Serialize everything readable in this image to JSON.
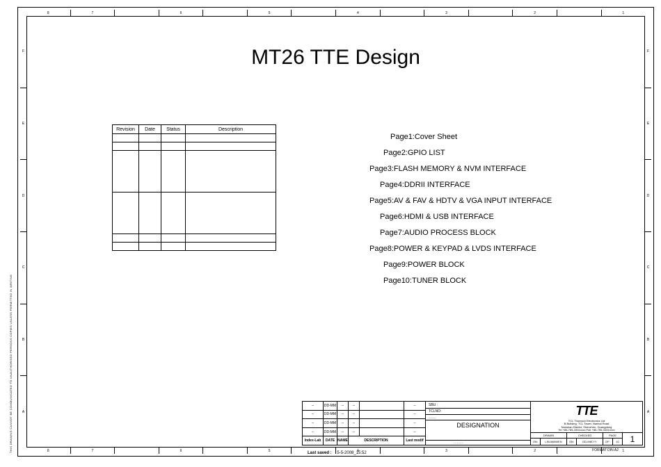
{
  "title": "MT26 TTE Design",
  "ruler_h": [
    "8",
    "7",
    "",
    "6",
    "",
    "5",
    "",
    "4",
    "",
    "3",
    "",
    "2",
    "",
    "1"
  ],
  "ruler_v_left": [
    "F",
    "E",
    "D",
    "C",
    "B",
    "A"
  ],
  "ruler_v_right": [
    "F",
    "E",
    "D",
    "C",
    "B",
    "A"
  ],
  "rev_headers": {
    "rev": "Revision",
    "date": "Date",
    "status": "Status",
    "desc": "Description"
  },
  "pages": {
    "p1": "Page1:Cover Sheet",
    "p2": "Page2:GPIO LIST",
    "p3": "Page3:FLASH MEMORY & NVM INTERFACE",
    "p4": "Page4:DDRII INTERFACE",
    "p5": "Page5:AV & FAV & HDTV & VGA INPUT INTERFACE",
    "p6": "Page6:HDMI & USB INTERFACE",
    "p7": "Page7:AUDIO PROCESS BLOCK",
    "p8": "Page8:POWER & KEYPAD & LVDS INTERFACE",
    "p9": "Page9:POWER BLOCK",
    "p10": "Page10:TUNER BLOCK"
  },
  "vtext": "THIS DRAWING CANNOT BE COMMUNICATED TO UNAUTHORISED PERSONS COPIES UNLESS PERMITTED IN WRITING",
  "tb_left_rows": {
    "r1": {
      "c1": "--",
      "c2": "DD-MM",
      "c3": "--",
      "c4": "--",
      "c5": "",
      "c6": "--"
    },
    "r2": {
      "c1": "--",
      "c2": "DD-MM",
      "c3": "--",
      "c4": "--",
      "c5": "",
      "c6": "--"
    },
    "r3": {
      "c1": "--",
      "c2": "DD-MM",
      "c3": "--",
      "c4": "--",
      "c5": "",
      "c6": "--"
    },
    "r4": {
      "c1": "--",
      "c2": "DD-MM",
      "c3": "--",
      "c4": "--",
      "c5": "",
      "c6": "--"
    },
    "hdr": {
      "c1": "Index-Lab",
      "c2": "DATE",
      "c3": "NAME",
      "c4": "DESCRIPTION",
      "c5": "Last modif"
    }
  },
  "tb_mid": {
    "sbu": "SBU :",
    "tcl": "TCLNO:",
    "dash": "--------",
    "des": "DESIGNATION",
    "dash2": "- - - - - -"
  },
  "logo": "TTE",
  "company": {
    "l1": "TCL Thomson Electronics Ltd",
    "l2": "B Building, TCL Tower, Nanhai Road",
    "l3": "Nanshan District, Shenzhen, Guangdong",
    "l4": "Tel +86-755-3331xxxx    Fax +86-755-3331xxxx"
  },
  "tbr": {
    "drawn": "DRAWN",
    "on": "ON:",
    "by": "BY:",
    "by_val": "LINJIANWEN",
    "checked": "CHECKED",
    "on2": "ON:",
    "on2_val": "DD-MM-YY",
    "by2": "BY:",
    "page_lbl": "PAGE",
    "of": "OF:",
    "of_val": "10",
    "page": "1"
  },
  "lastsaved_lbl": "Last saved :",
  "lastsaved_val": "5-5-2008_15:52",
  "format": "FORMAT DIN A2"
}
